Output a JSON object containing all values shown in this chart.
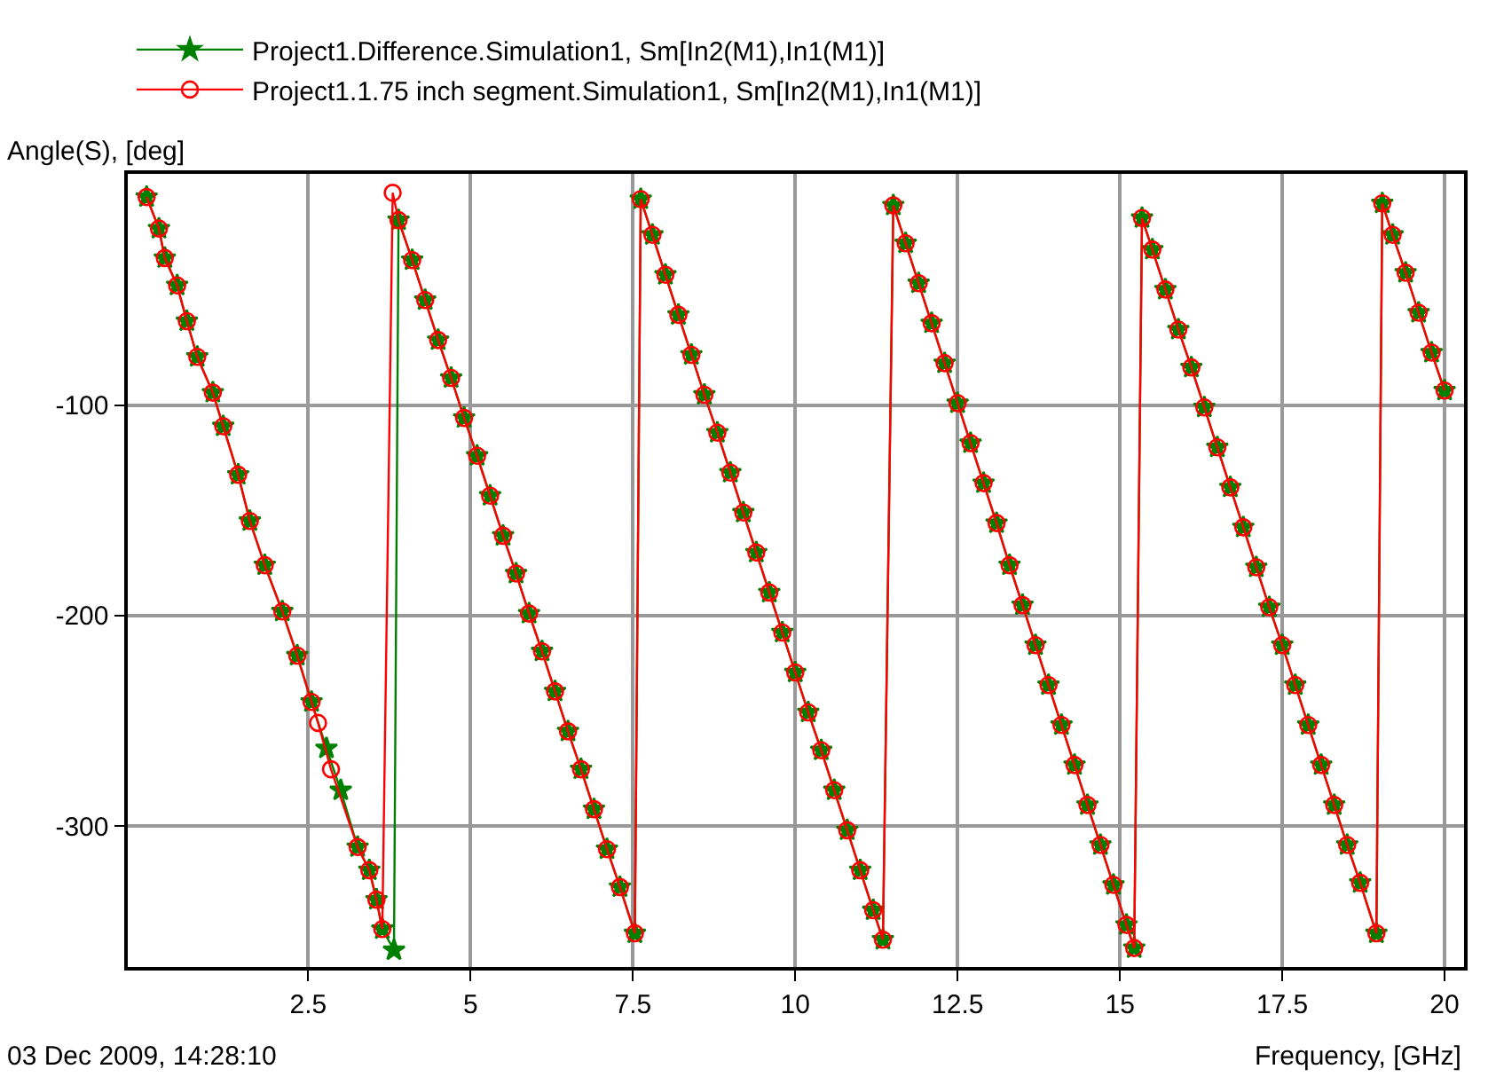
{
  "chart_data": {
    "type": "line",
    "xlabel": "Frequency, [GHz]",
    "ylabel": "Angle(S), [deg]",
    "annotations": [
      "03 Dec 2009, 14:28:10"
    ],
    "xlim": [
      -0.28,
      20.3
    ],
    "ylim": [
      -367,
      10
    ],
    "xticks": [
      2.5,
      5,
      7.5,
      10,
      12.5,
      15,
      17.5,
      20
    ],
    "yticks": [
      -100,
      -200,
      -300
    ],
    "grid": true,
    "legend": "top left",
    "line_style": "solid",
    "series": [
      {
        "name": "Project1.Difference.Simulation1, Sm[In2(M1),In1(M1)]",
        "color": "#008000",
        "marker": "star",
        "x": [
          0.01,
          0.2,
          0.29,
          0.48,
          0.63,
          0.79,
          1.03,
          1.19,
          1.42,
          1.6,
          1.83,
          2.1,
          2.33,
          2.55,
          2.78,
          3.0,
          3.26,
          3.44,
          3.55,
          3.64,
          3.82,
          3.89,
          4.1,
          4.3,
          4.5,
          4.7,
          4.9,
          5.1,
          5.3,
          5.5,
          5.7,
          5.9,
          6.1,
          6.3,
          6.5,
          6.7,
          6.9,
          7.1,
          7.3,
          7.53,
          7.62,
          7.8,
          8.0,
          8.2,
          8.4,
          8.6,
          8.8,
          9.0,
          9.2,
          9.4,
          9.6,
          9.8,
          10.0,
          10.2,
          10.4,
          10.6,
          10.8,
          11.0,
          11.2,
          11.35,
          11.51,
          11.7,
          11.9,
          12.1,
          12.3,
          12.5,
          12.7,
          12.9,
          13.1,
          13.3,
          13.5,
          13.7,
          13.9,
          14.1,
          14.3,
          14.5,
          14.7,
          14.9,
          15.1,
          15.22,
          15.34,
          15.5,
          15.7,
          15.9,
          16.1,
          16.3,
          16.5,
          16.7,
          16.9,
          17.1,
          17.3,
          17.5,
          17.7,
          17.9,
          18.1,
          18.3,
          18.5,
          18.7,
          18.95,
          19.04,
          19.2,
          19.4,
          19.6,
          19.8,
          20.0
        ],
        "values": [
          -1,
          -16,
          -30,
          -43,
          -60,
          -77,
          -94,
          -110,
          -133,
          -155,
          -176,
          -198,
          -219,
          -241,
          -263,
          -283,
          -310,
          -321,
          -335,
          -349,
          -359,
          -12,
          -31,
          -50,
          -69,
          -87,
          -106,
          -124,
          -143,
          -162,
          -180,
          -199,
          -217,
          -236,
          -255,
          -273,
          -292,
          -311,
          -329,
          -351,
          -2,
          -19,
          -38,
          -57,
          -76,
          -95,
          -113,
          -132,
          -151,
          -170,
          -189,
          -208,
          -227,
          -246,
          -264,
          -283,
          -302,
          -321,
          -340,
          -354,
          -5,
          -23,
          -42,
          -61,
          -80,
          -99,
          -118,
          -137,
          -156,
          -176,
          -195,
          -214,
          -233,
          -252,
          -271,
          -290,
          -309,
          -328,
          -347,
          -358,
          -11,
          -26,
          -45,
          -64,
          -82,
          -101,
          -120,
          -139,
          -158,
          -177,
          -196,
          -214,
          -233,
          -252,
          -271,
          -290,
          -309,
          -327,
          -351,
          -4,
          -19,
          -37,
          -56,
          -75,
          -93
        ]
      },
      {
        "name": "Project1.1.75 inch segment.Simulation1, Sm[In2(M1),In1(M1)]",
        "color": "#ff0000",
        "marker": "circle",
        "x": [
          0.01,
          0.2,
          0.29,
          0.48,
          0.63,
          0.79,
          1.03,
          1.19,
          1.42,
          1.6,
          1.83,
          2.1,
          2.33,
          2.55,
          2.65,
          2.85,
          3.26,
          3.44,
          3.55,
          3.64,
          3.8,
          3.89,
          4.1,
          4.3,
          4.5,
          4.7,
          4.9,
          5.1,
          5.3,
          5.5,
          5.7,
          5.9,
          6.1,
          6.3,
          6.5,
          6.7,
          6.9,
          7.1,
          7.3,
          7.53,
          7.62,
          7.8,
          8.0,
          8.2,
          8.4,
          8.6,
          8.8,
          9.0,
          9.2,
          9.4,
          9.6,
          9.8,
          10.0,
          10.2,
          10.4,
          10.6,
          10.8,
          11.0,
          11.2,
          11.35,
          11.51,
          11.7,
          11.9,
          12.1,
          12.3,
          12.5,
          12.7,
          12.9,
          13.1,
          13.3,
          13.5,
          13.7,
          13.9,
          14.1,
          14.3,
          14.5,
          14.7,
          14.9,
          15.1,
          15.22,
          15.34,
          15.5,
          15.7,
          15.9,
          16.1,
          16.3,
          16.5,
          16.7,
          16.9,
          17.1,
          17.3,
          17.5,
          17.7,
          17.9,
          18.1,
          18.3,
          18.5,
          18.7,
          18.95,
          19.04,
          19.2,
          19.4,
          19.6,
          19.8,
          20.0
        ],
        "values": [
          -1,
          -16,
          -30,
          -43,
          -60,
          -77,
          -94,
          -110,
          -133,
          -155,
          -176,
          -198,
          -219,
          -241,
          -251,
          -273,
          -310,
          -321,
          -335,
          -349,
          1,
          -12,
          -31,
          -50,
          -69,
          -87,
          -106,
          -124,
          -143,
          -162,
          -180,
          -199,
          -217,
          -236,
          -255,
          -273,
          -292,
          -311,
          -329,
          -351,
          -2,
          -19,
          -38,
          -57,
          -76,
          -95,
          -113,
          -132,
          -151,
          -170,
          -189,
          -208,
          -227,
          -246,
          -264,
          -283,
          -302,
          -321,
          -340,
          -354,
          -5,
          -23,
          -42,
          -61,
          -80,
          -99,
          -118,
          -137,
          -156,
          -176,
          -195,
          -214,
          -233,
          -252,
          -271,
          -290,
          -309,
          -328,
          -347,
          -358,
          -11,
          -26,
          -45,
          -64,
          -82,
          -101,
          -120,
          -139,
          -158,
          -177,
          -196,
          -214,
          -233,
          -252,
          -271,
          -290,
          -309,
          -327,
          -351,
          -4,
          -19,
          -37,
          -56,
          -75,
          -93
        ]
      }
    ]
  }
}
